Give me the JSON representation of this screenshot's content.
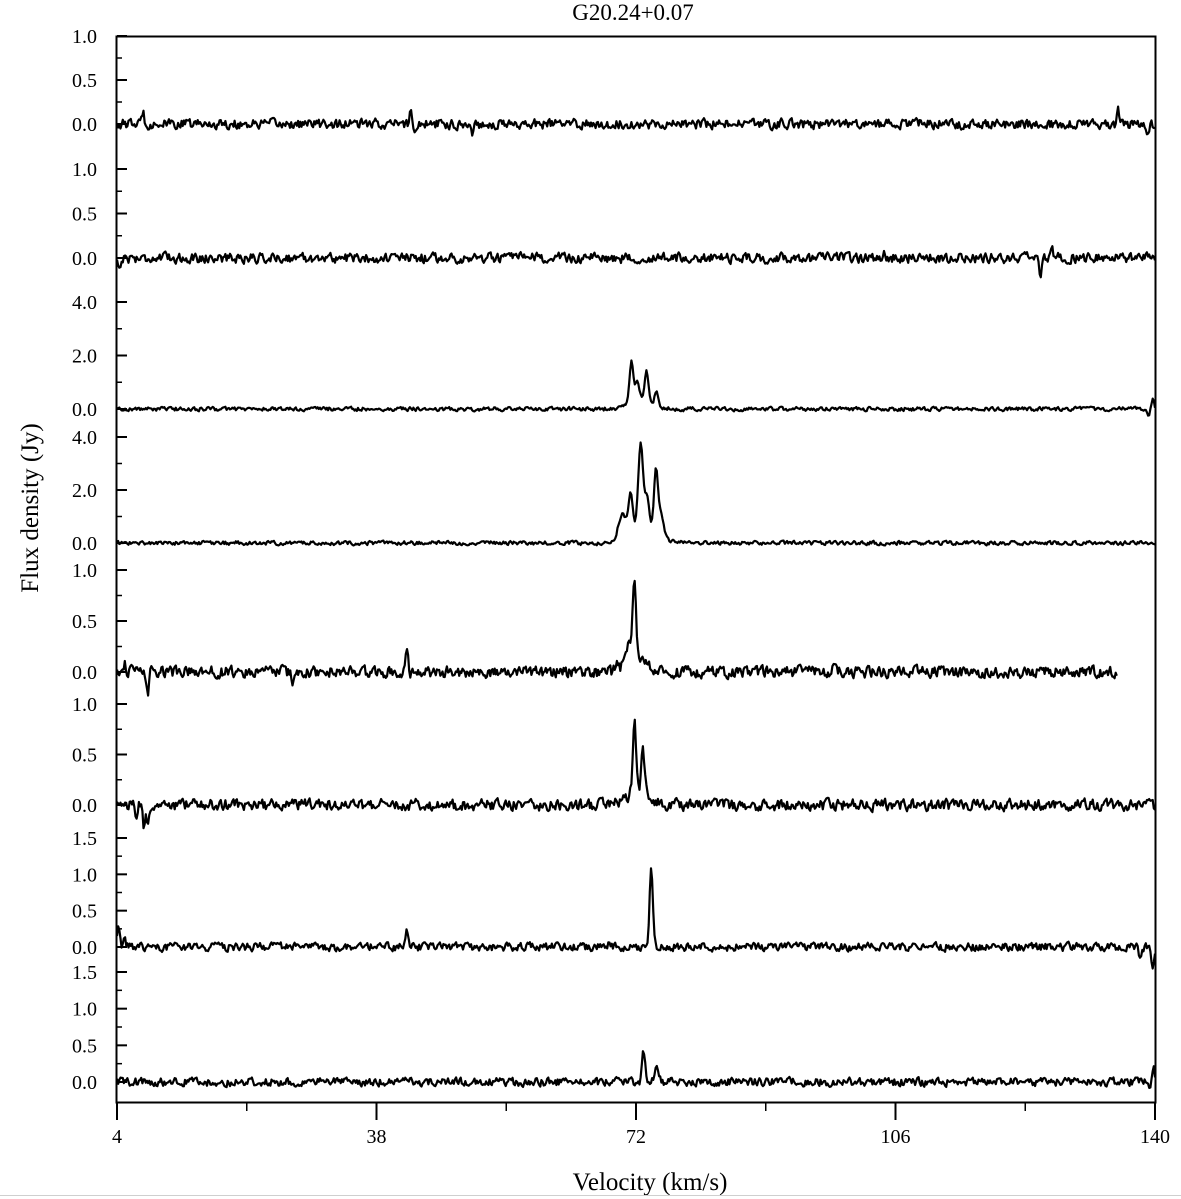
{
  "figure": {
    "title": "G20.24+0.07",
    "xlabel": "Velocity (km/s)",
    "ylabel": "Flux density (Jy)"
  },
  "colors": {
    "line": "#000000",
    "axis": "#000000",
    "background": "#ffffff"
  },
  "chart_data": {
    "type": "line",
    "title": "G20.24+0.07",
    "xlabel": "Velocity (km/s)",
    "ylabel": "Flux density (Jy)",
    "xlim": [
      4,
      140
    ],
    "xticks": [
      4,
      38,
      72,
      106,
      140
    ],
    "xtick_labels": [
      "4",
      "38",
      "72",
      "106",
      "140"
    ],
    "grid": false,
    "legend": "none",
    "layout": "8 vertically stacked panels sharing the velocity axis",
    "panels": [
      {
        "ylim": [
          -0.12,
          1.0
        ],
        "yticks": [
          0.0,
          0.5,
          1.0
        ],
        "ytick_labels": [
          "0.0",
          "0.5",
          "1.0"
        ],
        "vrange": [
          4,
          140
        ],
        "rms": 0.03,
        "features": [],
        "spikes": [
          {
            "v": 7.4,
            "amp": 0.14
          },
          {
            "v": 42.5,
            "amp": 0.16
          },
          {
            "v": 43.0,
            "amp": -0.1
          },
          {
            "v": 50.5,
            "amp": -0.1
          },
          {
            "v": 135.2,
            "amp": 0.14
          },
          {
            "v": 139.0,
            "amp": -0.15
          }
        ]
      },
      {
        "ylim": [
          -0.2,
          1.0
        ],
        "yticks": [
          0.0,
          0.5,
          1.0
        ],
        "ytick_labels": [
          "0.0",
          "0.5",
          "1.0"
        ],
        "vrange": [
          4,
          140
        ],
        "rms": 0.03,
        "features": [],
        "spikes": [
          {
            "v": 4.3,
            "amp": -0.12
          },
          {
            "v": 104.5,
            "amp": 0.13
          },
          {
            "v": 125.0,
            "amp": -0.2
          },
          {
            "v": 126.5,
            "amp": 0.1
          }
        ]
      },
      {
        "ylim": [
          -0.3,
          4.0
        ],
        "yticks": [
          0.0,
          2.0,
          4.0
        ],
        "ytick_labels": [
          "0.0",
          "2.0",
          "4.0"
        ],
        "vrange": [
          4,
          140
        ],
        "rms": 0.04,
        "features": [
          {
            "v": 71.4,
            "amp": 1.55,
            "w": 0.25
          },
          {
            "v": 72.2,
            "amp": 0.7,
            "w": 0.25
          },
          {
            "v": 73.4,
            "amp": 1.1,
            "w": 0.25
          },
          {
            "v": 72.6,
            "amp": 0.35,
            "w": 1.4
          },
          {
            "v": 74.7,
            "amp": 0.55,
            "w": 0.25
          }
        ],
        "spikes": [
          {
            "v": 139.2,
            "amp": -0.25
          },
          {
            "v": 139.7,
            "amp": 0.4
          }
        ]
      },
      {
        "ylim": [
          -0.1,
          4.0
        ],
        "yticks": [
          0.0,
          2.0,
          4.0
        ],
        "ytick_labels": [
          "0.0",
          "2.0",
          "4.0"
        ],
        "vrange": [
          4,
          140
        ],
        "rms": 0.04,
        "features": [
          {
            "v": 70.2,
            "amp": 0.9,
            "w": 0.5
          },
          {
            "v": 71.3,
            "amp": 1.5,
            "w": 0.25
          },
          {
            "v": 72.6,
            "amp": 3.2,
            "w": 0.3
          },
          {
            "v": 73.4,
            "amp": 1.2,
            "w": 0.3
          },
          {
            "v": 74.6,
            "amp": 2.2,
            "w": 0.25
          },
          {
            "v": 75.2,
            "amp": 0.9,
            "w": 0.4
          },
          {
            "v": 72.8,
            "amp": 0.6,
            "w": 1.8
          }
        ],
        "spikes": []
      },
      {
        "ylim": [
          -0.05,
          1.0
        ],
        "yticks": [
          0.0,
          0.5,
          1.0
        ],
        "ytick_labels": [
          "0.0",
          "0.5",
          "1.0"
        ],
        "vrange": [
          4,
          135
        ],
        "rms": 0.03,
        "features": [
          {
            "v": 71.8,
            "amp": 0.68,
            "w": 0.2
          },
          {
            "v": 71.2,
            "amp": 0.18,
            "w": 0.5
          },
          {
            "v": 72.0,
            "amp": 0.15,
            "w": 1.2
          }
        ],
        "spikes": [
          {
            "v": 8.0,
            "amp": -0.22
          },
          {
            "v": 5.0,
            "amp": 0.1
          },
          {
            "v": 42.0,
            "amp": 0.22
          },
          {
            "v": 69.5,
            "amp": 0.12
          },
          {
            "v": 98.0,
            "amp": 0.1
          },
          {
            "v": 27.0,
            "amp": -0.12
          }
        ]
      },
      {
        "ylim": [
          -0.1,
          1.0
        ],
        "yticks": [
          0.0,
          0.5,
          1.0
        ],
        "ytick_labels": [
          "0.0",
          "0.5",
          "1.0"
        ],
        "vrange": [
          4,
          140
        ],
        "rms": 0.03,
        "features": [
          {
            "v": 71.8,
            "amp": 0.72,
            "w": 0.22
          },
          {
            "v": 72.9,
            "amp": 0.45,
            "w": 0.22
          },
          {
            "v": 72.2,
            "amp": 0.12,
            "w": 1.5
          }
        ],
        "spikes": [
          {
            "v": 7.5,
            "amp": -0.22
          },
          {
            "v": 8.0,
            "amp": -0.2
          },
          {
            "v": 6.5,
            "amp": -0.12
          }
        ]
      },
      {
        "ylim": [
          -0.2,
          1.5
        ],
        "yticks": [
          0.0,
          0.5,
          1.0,
          1.5
        ],
        "ytick_labels": [
          "0.0",
          "0.5",
          "1.0",
          "1.5"
        ],
        "vrange": [
          4,
          140
        ],
        "rms": 0.03,
        "features": [
          {
            "v": 74.0,
            "amp": 1.1,
            "w": 0.2
          }
        ],
        "spikes": [
          {
            "v": 4.2,
            "amp": 0.25
          },
          {
            "v": 5.0,
            "amp": 0.1
          },
          {
            "v": 42.0,
            "amp": 0.26
          },
          {
            "v": 68.5,
            "amp": 0.1
          },
          {
            "v": 138.0,
            "amp": -0.18
          },
          {
            "v": 139.7,
            "amp": -0.3
          }
        ]
      },
      {
        "ylim": [
          -0.25,
          1.5
        ],
        "yticks": [
          0.0,
          0.5,
          1.0,
          1.5
        ],
        "ytick_labels": [
          "0.0",
          "0.5",
          "1.0",
          "1.5"
        ],
        "vrange": [
          4,
          140
        ],
        "rms": 0.03,
        "features": [
          {
            "v": 73.0,
            "amp": 0.42,
            "w": 0.2
          },
          {
            "v": 74.7,
            "amp": 0.16,
            "w": 0.35
          }
        ],
        "spikes": [
          {
            "v": 139.8,
            "amp": 0.2
          },
          {
            "v": 139.4,
            "amp": -0.12
          }
        ]
      }
    ]
  }
}
